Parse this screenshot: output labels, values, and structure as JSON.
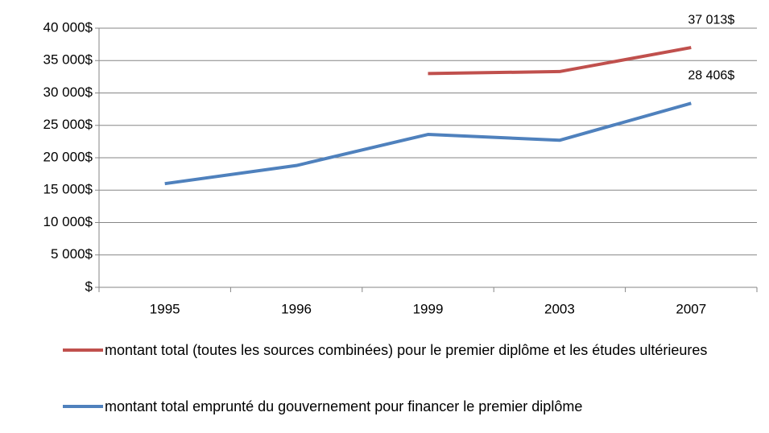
{
  "chart_data": {
    "type": "line",
    "categories": [
      "1995",
      "1996",
      "1999",
      "2003",
      "2007"
    ],
    "series": [
      {
        "name": "montant total (toutes les sources combinées) pour le premier diplôme et les études ultérieures",
        "color": "#c0504d",
        "values": [
          null,
          null,
          33000,
          33300,
          37013
        ],
        "value_labels": [
          null,
          null,
          null,
          null,
          "37 013$"
        ]
      },
      {
        "name": "montant total emprunté du gouvernement pour financer le premier diplôme",
        "color": "#4f81bd",
        "values": [
          16000,
          18800,
          23600,
          22700,
          28406
        ],
        "value_labels": [
          null,
          null,
          null,
          null,
          "28 406$"
        ]
      }
    ],
    "ylim": [
      0,
      40000
    ],
    "yticks": [
      {
        "value": 0,
        "label": "$"
      },
      {
        "value": 5000,
        "label": "5 000$"
      },
      {
        "value": 10000,
        "label": "10 000$"
      },
      {
        "value": 15000,
        "label": "15 000$"
      },
      {
        "value": 20000,
        "label": "20 000$"
      },
      {
        "value": 25000,
        "label": "25 000$"
      },
      {
        "value": 30000,
        "label": "30 000$"
      },
      {
        "value": 35000,
        "label": "35 000$"
      },
      {
        "value": 40000,
        "label": "40 000$"
      }
    ],
    "grid": true,
    "legend": "bottom"
  }
}
